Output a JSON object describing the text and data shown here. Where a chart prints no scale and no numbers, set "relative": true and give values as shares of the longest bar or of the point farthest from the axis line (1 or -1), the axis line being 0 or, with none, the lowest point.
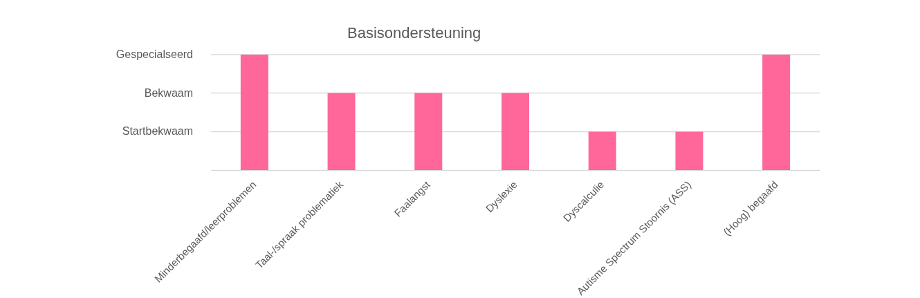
{
  "chart_data": {
    "type": "bar",
    "title": "Basisondersteuning",
    "categories": [
      "Minderbegaafd/leerproblemen",
      "Taal-/spraak problematiek",
      "Faalangst",
      "Dyslexie",
      "Dyscalculie",
      "Autisme Spectrum Stoornis (ASS)",
      "(Hoog) begaafd"
    ],
    "values": [
      1,
      0.667,
      0.667,
      0.667,
      0.333,
      0.333,
      1
    ],
    "color": "#ff6699",
    "relative": true,
    "ref_lines": [
      {
        "axis": "y",
        "value": 1,
        "label": "Gespecialseerd",
        "color": "#d9d9d9"
      },
      {
        "axis": "y",
        "value": 0.667,
        "label": "Bekwaam",
        "color": "#d9d9d9"
      },
      {
        "axis": "y",
        "value": 0.333,
        "label": "Startbekwaam",
        "color": "#d9d9d9"
      }
    ]
  }
}
